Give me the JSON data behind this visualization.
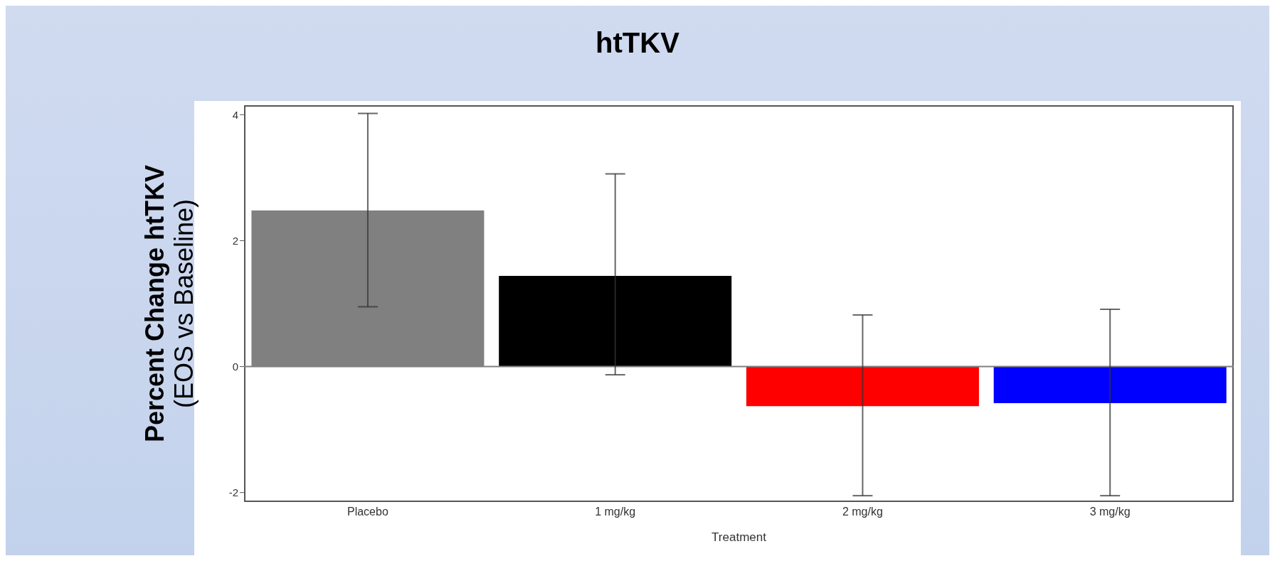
{
  "chart_data": {
    "type": "bar",
    "title": "htTKV",
    "xlabel": "Treatment",
    "ylabel": "Percent Change htTKV\n(EOS vs Baseline)",
    "categories": [
      "Placebo",
      "1 mg/kg",
      "2 mg/kg",
      "3 mg/kg"
    ],
    "values": [
      2.48,
      1.44,
      -0.63,
      -0.58
    ],
    "colors": [
      "#808080",
      "#000000",
      "#ff0000",
      "#0000ff"
    ],
    "errors": [
      [
        0.95,
        4.02
      ],
      [
        -0.13,
        3.06
      ],
      [
        -2.05,
        0.82
      ],
      [
        -2.05,
        0.91
      ]
    ],
    "ylim": [
      -2.15,
      4.15
    ],
    "yticks": [
      -2,
      0,
      2,
      4
    ],
    "ref_lines": [
      {
        "axis": "y",
        "value": 0,
        "color": "#808080"
      }
    ],
    "grid": false,
    "legend": false
  }
}
